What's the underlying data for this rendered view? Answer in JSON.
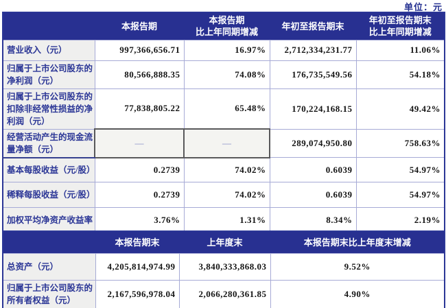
{
  "unit_label": "单位：元",
  "colors": {
    "header_bg": "#283091",
    "label_text": "#2b3696",
    "grid_border": "#a6aad6",
    "outer_border": "#2b3696",
    "label_bg": "#efefee",
    "dash_cell_border": "#58585a",
    "dash_text": "#9aa0cf"
  },
  "table1": {
    "headers": [
      {
        "lines": [
          "",
          ""
        ]
      },
      {
        "lines": [
          "本报告期",
          ""
        ]
      },
      {
        "lines": [
          "本报告期",
          "比上年同期增减"
        ]
      },
      {
        "lines": [
          "年初至报告期末",
          ""
        ]
      },
      {
        "lines": [
          "年初至报告期末",
          "比上年同期增减"
        ]
      }
    ],
    "rows": [
      {
        "label": "营业收入（元）",
        "values": [
          "997,366,656.71",
          "16.97%",
          "2,712,334,231.77",
          "11.06%"
        ]
      },
      {
        "label": "归属于上市公司股东的净利润（元）",
        "values": [
          "80,566,888.35",
          "74.08%",
          "176,735,549.56",
          "54.18%"
        ]
      },
      {
        "label": "归属于上市公司股东的扣除非经常性损益的净利润（元）",
        "values": [
          "77,838,805.22",
          "65.48%",
          "170,224,168.15",
          "49.42%"
        ]
      },
      {
        "label": "经营活动产生的现金流量净额（元）",
        "values": [
          "—",
          "—",
          "289,074,950.80",
          "758.63%"
        ]
      },
      {
        "label": "基本每股收益（元/股）",
        "values": [
          "0.2739",
          "74.02%",
          "0.6039",
          "54.97%"
        ]
      },
      {
        "label": "稀释每股收益（元/股）",
        "values": [
          "0.2739",
          "74.02%",
          "0.6039",
          "54.97%"
        ]
      },
      {
        "label": "加权平均净资产收益率",
        "values": [
          "3.76%",
          "1.31%",
          "8.34%",
          "2.19%"
        ]
      }
    ]
  },
  "table2": {
    "headers": [
      "",
      "本报告期末",
      "上年度末",
      "本报告期末比上年度末增减"
    ],
    "rows": [
      {
        "label": "总资产（元）",
        "values": [
          "4,205,814,974.99",
          "3,840,333,868.03",
          "9.52%"
        ]
      },
      {
        "label": "归属于上市公司股东的所有者权益（元）",
        "values": [
          "2,167,596,978.04",
          "2,066,280,361.85",
          "4.90%"
        ]
      }
    ]
  }
}
